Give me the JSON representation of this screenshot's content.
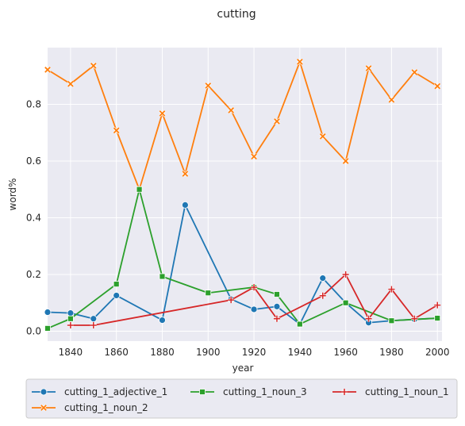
{
  "chart_data": {
    "type": "line",
    "title": "cutting",
    "xlabel": "year",
    "ylabel": "word%",
    "xlim": [
      1830,
      2002
    ],
    "ylim": [
      -0.035,
      1.0
    ],
    "xticks": [
      1840,
      1860,
      1880,
      1900,
      1920,
      1940,
      1960,
      1980,
      2000
    ],
    "xtick_labels": [
      "1840",
      "1860",
      "1880",
      "1900",
      "1920",
      "1940",
      "1960",
      "1980",
      "2000"
    ],
    "yticks": [
      0.0,
      0.2,
      0.4,
      0.6,
      0.8
    ],
    "ytick_labels": [
      "0.0",
      "0.2",
      "0.4",
      "0.6",
      "0.8"
    ],
    "grid": true,
    "legend_position": "bottom",
    "series": [
      {
        "name": "cutting_1_adjective_1",
        "color": "#1f77b4",
        "marker": "circle",
        "x": [
          1830,
          1840,
          1850,
          1860,
          1880,
          1890,
          1910,
          1920,
          1930,
          1940,
          1950,
          1960,
          1970,
          1980,
          1990,
          2000
        ],
        "y": [
          0.067,
          0.064,
          0.044,
          0.126,
          0.039,
          0.445,
          0.113,
          0.077,
          0.087,
          0.025,
          0.187,
          0.1,
          0.03,
          0.037,
          0.042,
          0.046
        ]
      },
      {
        "name": "cutting_1_noun_2",
        "color": "#ff7f0e",
        "marker": "x",
        "x": [
          1830,
          1840,
          1850,
          1860,
          1870,
          1880,
          1890,
          1900,
          1910,
          1920,
          1930,
          1940,
          1950,
          1960,
          1970,
          1980,
          1990,
          2000
        ],
        "y": [
          0.922,
          0.872,
          0.936,
          0.708,
          0.5,
          0.768,
          0.555,
          0.866,
          0.779,
          0.616,
          0.74,
          0.95,
          0.687,
          0.6,
          0.927,
          0.816,
          0.913,
          0.864
        ]
      },
      {
        "name": "cutting_1_noun_3",
        "color": "#2ca02c",
        "marker": "square",
        "x": [
          1830,
          1840,
          1860,
          1870,
          1880,
          1900,
          1920,
          1930,
          1940,
          1960,
          1980,
          2000
        ],
        "y": [
          0.01,
          0.044,
          0.166,
          0.5,
          0.193,
          0.135,
          0.155,
          0.13,
          0.025,
          0.1,
          0.037,
          0.046
        ]
      },
      {
        "name": "cutting_1_noun_1",
        "color": "#d62728",
        "marker": "plus",
        "x": [
          1840,
          1850,
          1910,
          1920,
          1930,
          1950,
          1960,
          1970,
          1980,
          1990,
          2000
        ],
        "y": [
          0.021,
          0.021,
          0.11,
          0.155,
          0.044,
          0.125,
          0.2,
          0.044,
          0.148,
          0.044,
          0.092
        ]
      }
    ]
  }
}
